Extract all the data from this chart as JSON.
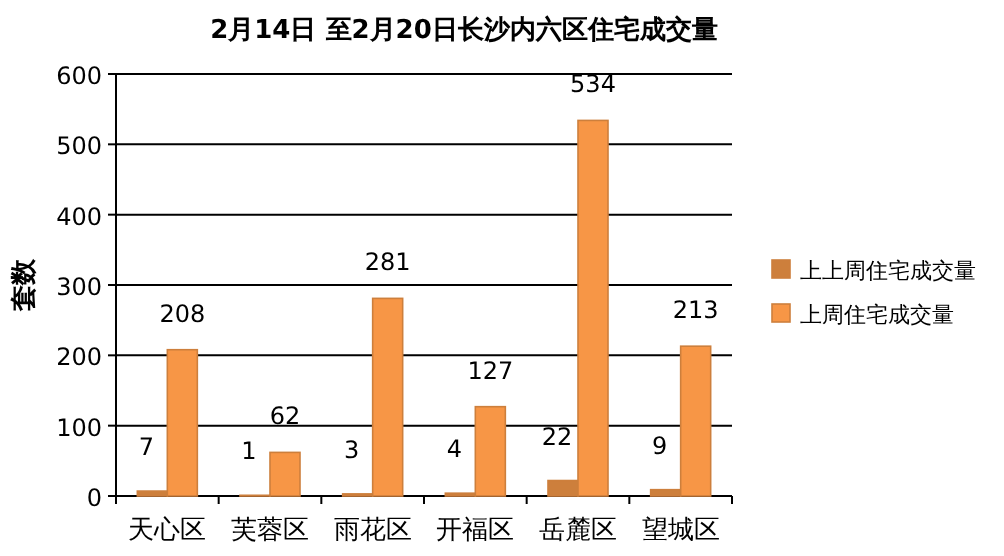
{
  "chart_data": {
    "type": "bar",
    "title": "2月14日 至2月20日长沙内六区住宅成交量",
    "ylabel": "套数",
    "categories": [
      "天心区",
      "芙蓉区",
      "雨花区",
      "开福区",
      "岳麓区",
      "望城区"
    ],
    "series": [
      {
        "name": "上上周住宅成交量",
        "color": "#cd7f3c",
        "values": [
          7,
          1,
          3,
          4,
          22,
          9
        ]
      },
      {
        "name": "上周住宅成交量",
        "color": "#f79646",
        "values": [
          208,
          62,
          281,
          127,
          534,
          213
        ]
      }
    ],
    "ylim": [
      0,
      600
    ],
    "yticks": [
      0,
      100,
      200,
      300,
      400,
      500,
      600
    ],
    "grid": "y",
    "legend": "right",
    "data_labels": true
  }
}
